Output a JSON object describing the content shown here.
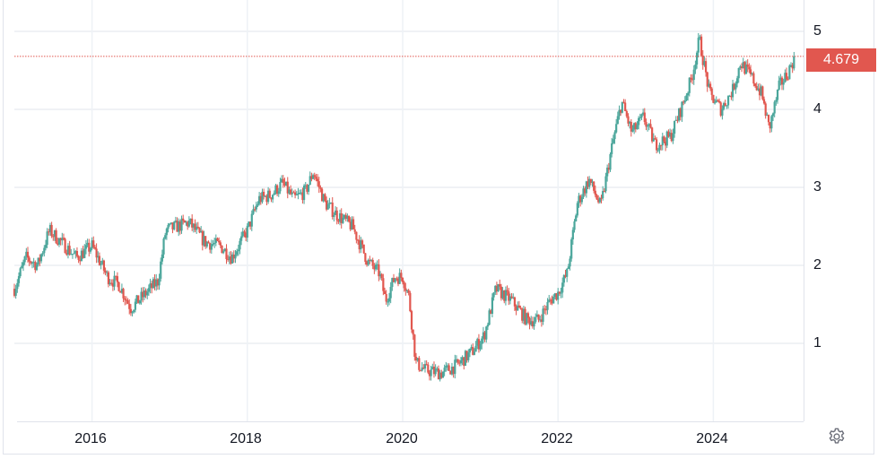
{
  "chart": {
    "current_price_label": "4.679",
    "colors": {
      "up": "#4ba69b",
      "down": "#e1574f",
      "grid": "#eceef2",
      "price_line": "#e1574f",
      "text": "#131722"
    },
    "settings_icon": "gear-icon"
  },
  "chart_data": {
    "type": "candlestick",
    "title": "",
    "xlabel": "",
    "ylabel": "",
    "x_ticks": [
      "2016",
      "2018",
      "2020",
      "2022",
      "2024"
    ],
    "y_ticks": [
      1,
      2,
      3,
      4,
      5
    ],
    "ylim": [
      0,
      5.4
    ],
    "xlim": [
      2015.0,
      2025.05
    ],
    "grid": true,
    "last_price": 4.679,
    "key_points": [
      {
        "t": 2015.0,
        "v": 1.7
      },
      {
        "t": 2015.15,
        "v": 2.1
      },
      {
        "t": 2015.3,
        "v": 2.0
      },
      {
        "t": 2015.45,
        "v": 2.45
      },
      {
        "t": 2015.6,
        "v": 2.3
      },
      {
        "t": 2015.8,
        "v": 2.1
      },
      {
        "t": 2016.0,
        "v": 2.25
      },
      {
        "t": 2016.2,
        "v": 1.85
      },
      {
        "t": 2016.35,
        "v": 1.75
      },
      {
        "t": 2016.5,
        "v": 1.45
      },
      {
        "t": 2016.7,
        "v": 1.65
      },
      {
        "t": 2016.85,
        "v": 1.8
      },
      {
        "t": 2016.95,
        "v": 2.45
      },
      {
        "t": 2017.1,
        "v": 2.5
      },
      {
        "t": 2017.25,
        "v": 2.55
      },
      {
        "t": 2017.45,
        "v": 2.3
      },
      {
        "t": 2017.65,
        "v": 2.25
      },
      {
        "t": 2017.8,
        "v": 2.1
      },
      {
        "t": 2018.0,
        "v": 2.45
      },
      {
        "t": 2018.15,
        "v": 2.85
      },
      {
        "t": 2018.3,
        "v": 2.9
      },
      {
        "t": 2018.45,
        "v": 3.05
      },
      {
        "t": 2018.6,
        "v": 2.85
      },
      {
        "t": 2018.75,
        "v": 2.95
      },
      {
        "t": 2018.85,
        "v": 3.2
      },
      {
        "t": 2019.0,
        "v": 2.8
      },
      {
        "t": 2019.15,
        "v": 2.65
      },
      {
        "t": 2019.35,
        "v": 2.5
      },
      {
        "t": 2019.55,
        "v": 2.05
      },
      {
        "t": 2019.7,
        "v": 1.9
      },
      {
        "t": 2019.78,
        "v": 1.55
      },
      {
        "t": 2019.9,
        "v": 1.85
      },
      {
        "t": 2020.0,
        "v": 1.85
      },
      {
        "t": 2020.08,
        "v": 1.6
      },
      {
        "t": 2020.17,
        "v": 0.75
      },
      {
        "t": 2020.3,
        "v": 0.65
      },
      {
        "t": 2020.5,
        "v": 0.62
      },
      {
        "t": 2020.7,
        "v": 0.72
      },
      {
        "t": 2020.9,
        "v": 0.9
      },
      {
        "t": 2021.05,
        "v": 1.1
      },
      {
        "t": 2021.2,
        "v": 1.7
      },
      {
        "t": 2021.4,
        "v": 1.55
      },
      {
        "t": 2021.6,
        "v": 1.3
      },
      {
        "t": 2021.75,
        "v": 1.3
      },
      {
        "t": 2021.9,
        "v": 1.55
      },
      {
        "t": 2022.0,
        "v": 1.65
      },
      {
        "t": 2022.12,
        "v": 1.9
      },
      {
        "t": 2022.25,
        "v": 2.8
      },
      {
        "t": 2022.4,
        "v": 3.1
      },
      {
        "t": 2022.55,
        "v": 2.75
      },
      {
        "t": 2022.7,
        "v": 3.55
      },
      {
        "t": 2022.82,
        "v": 4.1
      },
      {
        "t": 2022.95,
        "v": 3.7
      },
      {
        "t": 2023.1,
        "v": 3.9
      },
      {
        "t": 2023.25,
        "v": 3.55
      },
      {
        "t": 2023.45,
        "v": 3.65
      },
      {
        "t": 2023.6,
        "v": 4.05
      },
      {
        "t": 2023.72,
        "v": 4.4
      },
      {
        "t": 2023.82,
        "v": 4.9
      },
      {
        "t": 2023.95,
        "v": 4.2
      },
      {
        "t": 2024.1,
        "v": 4.0
      },
      {
        "t": 2024.25,
        "v": 4.25
      },
      {
        "t": 2024.35,
        "v": 4.6
      },
      {
        "t": 2024.5,
        "v": 4.4
      },
      {
        "t": 2024.62,
        "v": 4.2
      },
      {
        "t": 2024.72,
        "v": 3.75
      },
      {
        "t": 2024.85,
        "v": 4.3
      },
      {
        "t": 2024.95,
        "v": 4.45
      },
      {
        "t": 2025.05,
        "v": 4.679
      }
    ]
  }
}
